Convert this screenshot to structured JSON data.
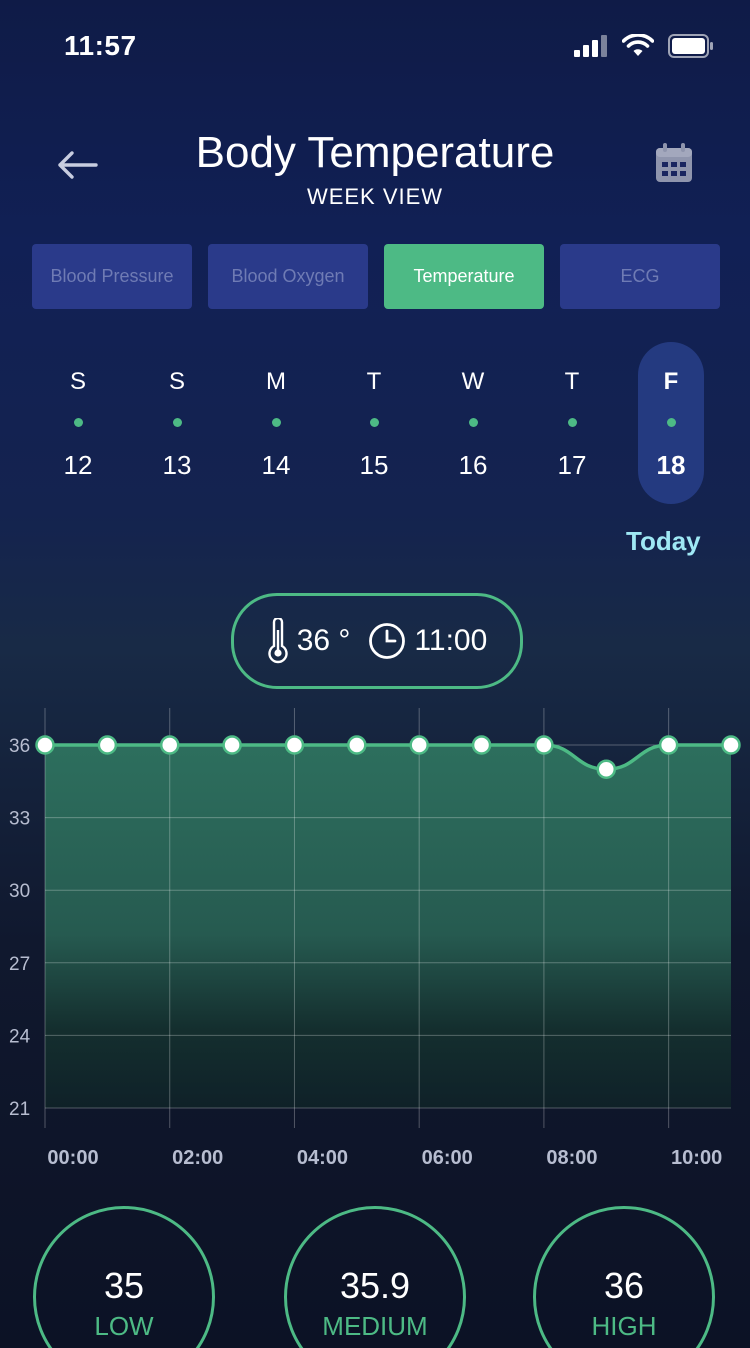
{
  "status_bar": {
    "time": "11:57"
  },
  "header": {
    "title": "Body Temperature",
    "subtitle": "WEEK VIEW"
  },
  "tabs": [
    {
      "label": "Blood Pressure",
      "active": false
    },
    {
      "label": "Blood Oxygen",
      "active": false
    },
    {
      "label": "Temperature",
      "active": true
    },
    {
      "label": "ECG",
      "active": false
    }
  ],
  "week": {
    "days": [
      {
        "letter": "S",
        "number": "12"
      },
      {
        "letter": "S",
        "number": "13"
      },
      {
        "letter": "M",
        "number": "14"
      },
      {
        "letter": "T",
        "number": "15"
      },
      {
        "letter": "W",
        "number": "16"
      },
      {
        "letter": "T",
        "number": "17"
      },
      {
        "letter": "F",
        "number": "18",
        "selected": true
      }
    ],
    "today_label": "Today"
  },
  "reading": {
    "temperature": "36 °",
    "time": "11:00",
    "icons": [
      "thermometer-icon",
      "clock-icon"
    ]
  },
  "chart_data": {
    "type": "area",
    "x": [
      "00:00",
      "01:00",
      "02:00",
      "03:00",
      "04:00",
      "05:00",
      "06:00",
      "07:00",
      "08:00",
      "09:00",
      "10:00",
      "11:00"
    ],
    "y": [
      36,
      36,
      36,
      36,
      36,
      36,
      36,
      36,
      36,
      35,
      36,
      36
    ],
    "x_tick_labels": [
      "00:00",
      "02:00",
      "04:00",
      "06:00",
      "08:00",
      "10:00"
    ],
    "y_tick_labels": [
      "36",
      "33",
      "30",
      "27",
      "24",
      "21"
    ],
    "ylim": [
      21,
      36
    ],
    "grid": true,
    "title": "",
    "xlabel": "",
    "ylabel": "",
    "colors": {
      "line": "#4dba85",
      "fill": "#2e6e5a",
      "point": "#ffffff"
    }
  },
  "stats": [
    {
      "value": "35",
      "label": "LOW"
    },
    {
      "value": "35.9",
      "label": "MEDIUM"
    },
    {
      "value": "36",
      "label": "HIGH"
    }
  ],
  "colors": {
    "accent": "#4dba85",
    "tab_inactive": "#2a3a8a",
    "selected_day": "#243a80",
    "today": "#9fe8f4"
  }
}
